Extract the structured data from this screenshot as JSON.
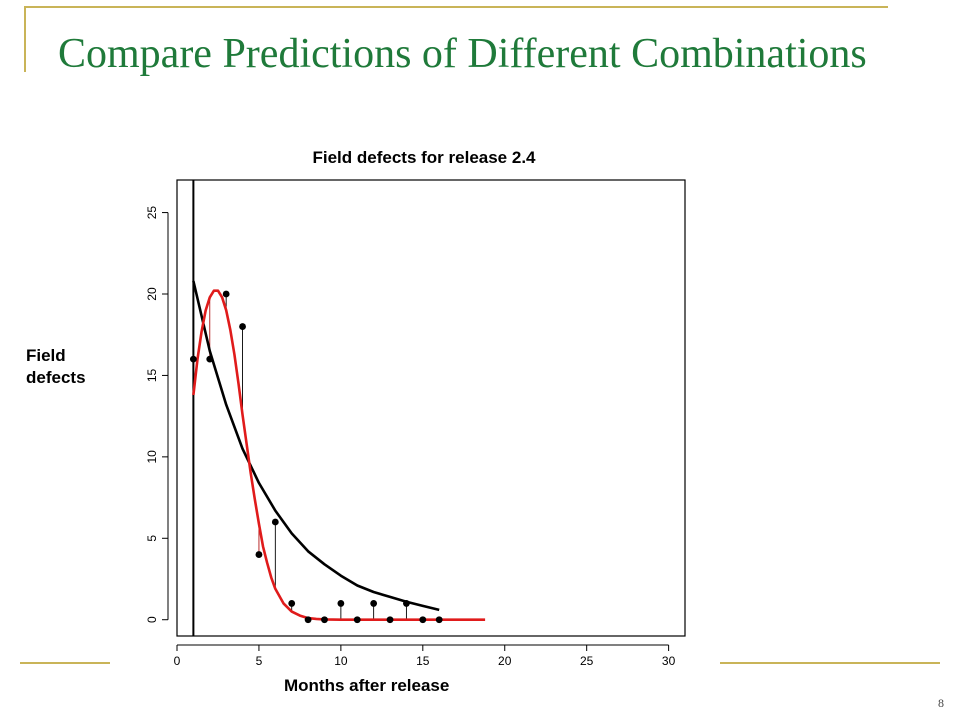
{
  "slide": {
    "title": "Compare Predictions of Different Combinations",
    "page_number": "8",
    "theme_color": "#c9b458",
    "title_color": "#1f7a3a"
  },
  "chart_data": {
    "type": "scatter",
    "title": "Field defects for release 2.4",
    "xlabel": "Months after release",
    "ylabel": "Field defects",
    "xlim": [
      0,
      31
    ],
    "ylim": [
      -1,
      27
    ],
    "xticks": [
      0,
      5,
      10,
      15,
      20,
      25,
      30
    ],
    "yticks": [
      0,
      5,
      10,
      15,
      20,
      25
    ],
    "grid": false,
    "vertical_line_x": 1,
    "observed": {
      "x": [
        1,
        2,
        3,
        4,
        5,
        6,
        7,
        8,
        9,
        10,
        11,
        12,
        13,
        14,
        15,
        16
      ],
      "y": [
        16,
        16,
        20,
        18,
        4,
        6,
        1,
        0,
        0,
        1,
        0,
        1,
        0,
        1,
        0,
        0
      ]
    },
    "series": [
      {
        "color": "#000000",
        "x": [
          1,
          2,
          3,
          4,
          5,
          6,
          7,
          8,
          9,
          10,
          11,
          12,
          13,
          14,
          15,
          16
        ],
        "y": [
          20.8,
          16.5,
          13.2,
          10.5,
          8.4,
          6.7,
          5.3,
          4.2,
          3.4,
          2.7,
          2.1,
          1.7,
          1.4,
          1.1,
          0.85,
          0.6
        ]
      },
      {
        "color": "#e01b1b",
        "x": [
          1,
          1.25,
          1.5,
          1.75,
          2,
          2.25,
          2.5,
          2.75,
          3,
          3.25,
          3.5,
          3.75,
          4,
          4.25,
          4.5,
          4.75,
          5,
          5.25,
          5.5,
          5.75,
          6,
          6.5,
          7,
          7.5,
          8,
          8.5,
          9,
          10,
          11,
          12,
          13,
          14,
          15,
          16,
          17,
          18,
          18.8
        ],
        "y": [
          13.8,
          16.0,
          17.7,
          19.0,
          19.8,
          20.2,
          20.2,
          19.8,
          19.0,
          17.8,
          16.3,
          14.5,
          12.6,
          10.8,
          9.0,
          7.4,
          5.9,
          4.5,
          3.5,
          2.6,
          1.9,
          1.0,
          0.5,
          0.25,
          0.1,
          0.05,
          0.02,
          0,
          0,
          0,
          0,
          0,
          0,
          0,
          0,
          0,
          0
        ]
      }
    ]
  }
}
